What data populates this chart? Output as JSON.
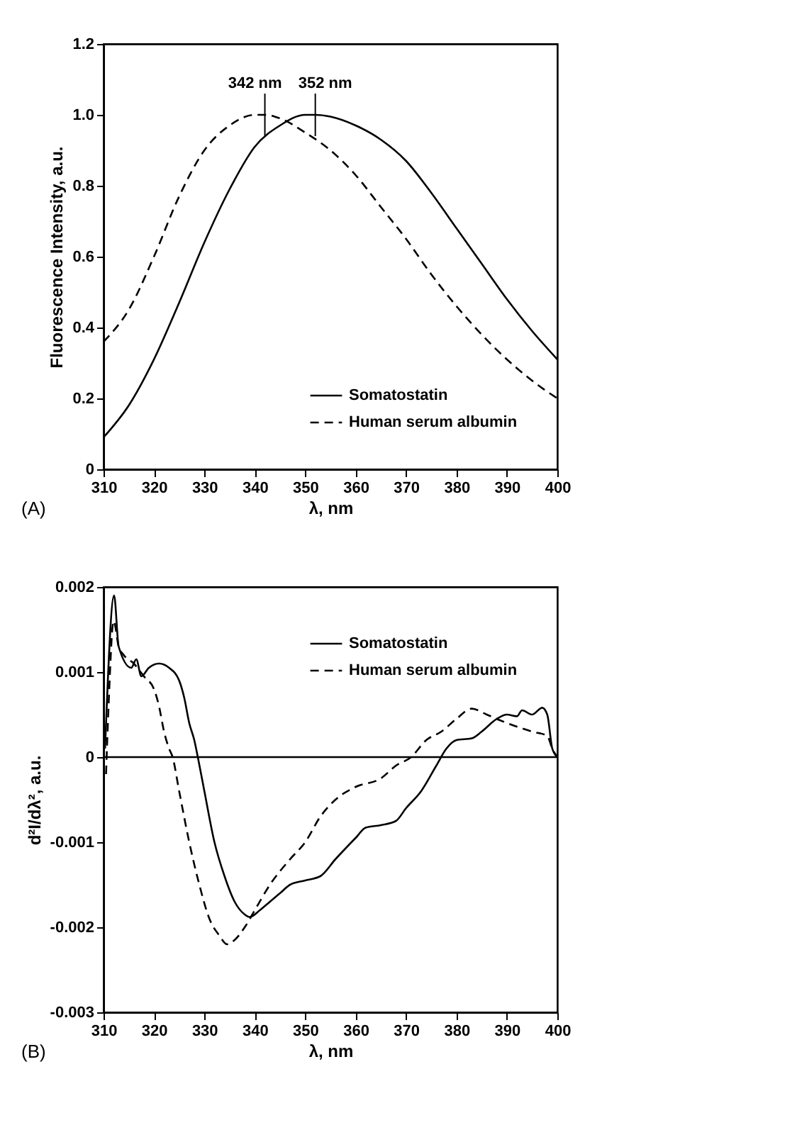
{
  "chart_data": [
    {
      "type": "line",
      "xlabel": "λ, nm",
      "ylabel": "Fluorescence Intensity, a.u.",
      "xlim": [
        310,
        400
      ],
      "xticks": [
        310,
        320,
        330,
        340,
        350,
        360,
        370,
        380,
        390,
        400
      ],
      "ylim": [
        0,
        1.2
      ],
      "yticks": [
        {
          "value": 0,
          "label": "0"
        },
        0.2,
        0.4,
        0.6,
        0.8,
        {
          "value": 1,
          "label": "1.0"
        },
        1.2
      ],
      "grid": false,
      "legend": "bottom right",
      "marker": "none",
      "annotations": [
        {
          "text": "342 nm",
          "x": 342,
          "y": 1.0
        },
        {
          "text": "352 nm",
          "x": 352,
          "y": 1.0
        },
        "(A)"
      ],
      "series": [
        {
          "name": "Somatostatin",
          "color": "#000000",
          "line_style": "solid",
          "x": [
            310,
            315,
            320,
            325,
            330,
            335,
            340,
            345,
            350,
            352,
            355,
            360,
            365,
            370,
            375,
            380,
            385,
            390,
            395,
            400
          ],
          "values": [
            0.09,
            0.18,
            0.31,
            0.47,
            0.64,
            0.79,
            0.91,
            0.97,
            1.0,
            1.0,
            0.995,
            0.97,
            0.93,
            0.87,
            0.78,
            0.68,
            0.58,
            0.48,
            0.39,
            0.31
          ]
        },
        {
          "name": "Human serum albumin",
          "color": "#000000",
          "line_style": "dashed",
          "x": [
            310,
            315,
            320,
            325,
            330,
            335,
            340,
            342,
            345,
            350,
            355,
            360,
            365,
            370,
            375,
            380,
            385,
            390,
            395,
            400
          ],
          "values": [
            0.36,
            0.45,
            0.6,
            0.77,
            0.9,
            0.97,
            1.0,
            1.0,
            0.99,
            0.95,
            0.9,
            0.83,
            0.74,
            0.65,
            0.55,
            0.46,
            0.38,
            0.31,
            0.25,
            0.2
          ]
        }
      ]
    },
    {
      "type": "line",
      "xlabel": "λ, nm",
      "ylabel": "d²I/dλ², a.u.",
      "xlim": [
        310,
        400
      ],
      "xticks": [
        310,
        320,
        330,
        340,
        350,
        360,
        370,
        380,
        390,
        400
      ],
      "ylim": [
        -0.003,
        0.002
      ],
      "yticks": [
        -0.003,
        -0.002,
        -0.001,
        0,
        0.001,
        0.002
      ],
      "grid": false,
      "legend": "top right",
      "marker": "none",
      "ref_lines": [
        {
          "axis": "y",
          "value": 0
        }
      ],
      "annotations": [
        "(B)"
      ],
      "series": [
        {
          "name": "Somatostatin",
          "color": "#000000",
          "line_style": "solid",
          "x": [
            310.3,
            312.1,
            313,
            315.5,
            316.5,
            317.5,
            319,
            321,
            323,
            325,
            326,
            327,
            328,
            328.7,
            330,
            332,
            334,
            336,
            338,
            339,
            341,
            343,
            345,
            347,
            350,
            353,
            356,
            360,
            362,
            365,
            368,
            370,
            373,
            376,
            378,
            380,
            383,
            385,
            388,
            390,
            392,
            393,
            395,
            397,
            398,
            399,
            400
          ],
          "values": [
            0.0001,
            0.0019,
            0.0013,
            0.00105,
            0.00115,
            0.00095,
            0.00105,
            0.0011,
            0.00105,
            0.0009,
            0.0007,
            0.0004,
            0.0002,
            0,
            -0.0004,
            -0.001,
            -0.0014,
            -0.0017,
            -0.00185,
            -0.00188,
            -0.0018,
            -0.0017,
            -0.0016,
            -0.0015,
            -0.00145,
            -0.0014,
            -0.0012,
            -0.00095,
            -0.00083,
            -0.0008,
            -0.00075,
            -0.0006,
            -0.0004,
            -0.0001,
            0.0001,
            0.0002,
            0.00022,
            0.0003,
            0.00045,
            0.0005,
            0.00048,
            0.00055,
            0.0005,
            0.00058,
            0.0005,
            0.0001,
            0
          ]
        },
        {
          "name": "Human serum albumin",
          "color": "#000000",
          "line_style": "dashed",
          "x": [
            310.5,
            311,
            312,
            313,
            314,
            316,
            318,
            320,
            321,
            322,
            323,
            323.7,
            325,
            327,
            329,
            331,
            333,
            334.5,
            336,
            338,
            340,
            343,
            347,
            350,
            353,
            356,
            360,
            365,
            368,
            371,
            374,
            377,
            380,
            383,
            386,
            390,
            395,
            398,
            399,
            400
          ],
          "values": [
            -0.0002,
            0.0006,
            0.0016,
            0.0013,
            0.0012,
            0.0011,
            0.00095,
            0.0008,
            0.0006,
            0.0003,
            0.0001,
            0,
            -0.0004,
            -0.001,
            -0.0015,
            -0.0019,
            -0.0021,
            -0.0022,
            -0.00215,
            -0.002,
            -0.0018,
            -0.0015,
            -0.0012,
            -0.001,
            -0.0007,
            -0.0005,
            -0.00035,
            -0.00025,
            -0.0001,
            0,
            0.0002,
            0.0003,
            0.00045,
            0.00057,
            0.0005,
            0.0004,
            0.0003,
            0.00025,
            0.0001,
            0
          ]
        }
      ]
    }
  ]
}
